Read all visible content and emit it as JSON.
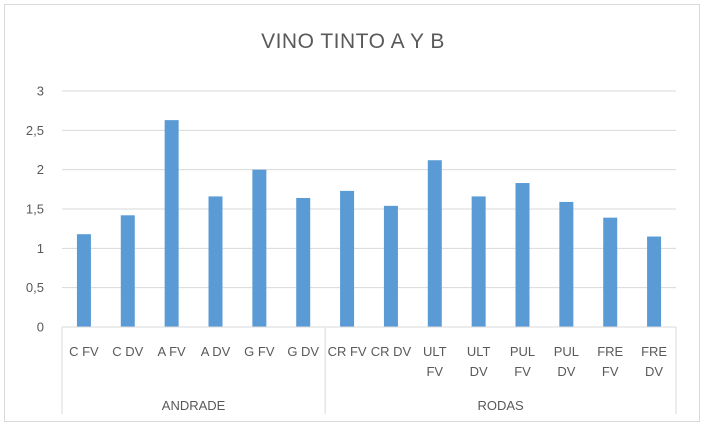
{
  "chart_data": {
    "type": "bar",
    "title": "VINO TINTO A Y B",
    "xlabel": "",
    "ylabel": "",
    "ylim": [
      0,
      3
    ],
    "yticks": [
      "0",
      "0,5",
      "1",
      "1,5",
      "2",
      "2,5",
      "3"
    ],
    "grid": true,
    "legend": "none",
    "bar_color": "#5b9bd5",
    "categories": [
      [
        "C FV"
      ],
      [
        "C DV"
      ],
      [
        "A FV"
      ],
      [
        "A DV"
      ],
      [
        "G FV"
      ],
      [
        "G DV"
      ],
      [
        "CR FV"
      ],
      [
        "CR DV"
      ],
      [
        "ULT",
        "FV"
      ],
      [
        "ULT",
        "DV"
      ],
      [
        "PUL",
        "FV"
      ],
      [
        "PUL",
        "DV"
      ],
      [
        "FRE",
        "FV"
      ],
      [
        "FRE",
        "DV"
      ]
    ],
    "values": [
      1.18,
      1.42,
      2.63,
      1.66,
      2.0,
      1.64,
      1.73,
      1.54,
      2.12,
      1.66,
      1.83,
      1.59,
      1.39,
      1.15
    ],
    "groups": [
      {
        "label": "ANDRADE",
        "count": 6
      },
      {
        "label": "RODAS",
        "count": 8
      }
    ]
  }
}
